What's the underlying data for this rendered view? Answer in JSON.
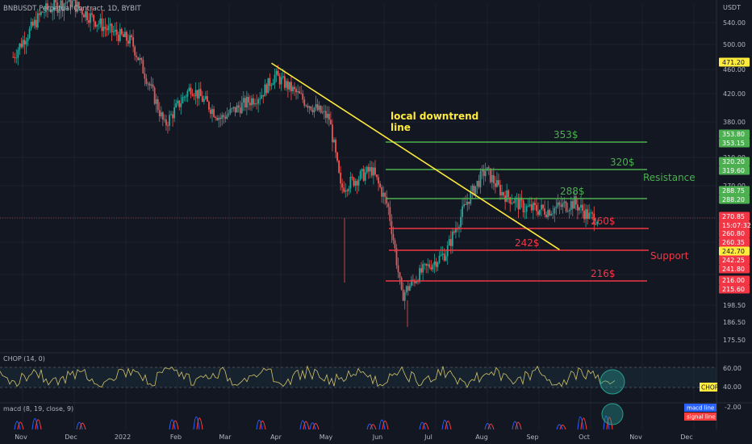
{
  "header": {
    "symbol_title": "BNBUSDT Perpetual Contract, 1D, BYBIT",
    "currency": "USDT"
  },
  "colors": {
    "background": "#131722",
    "grid": "#1e222d",
    "up_candle": "#26a69a",
    "down_candle": "#ef5350",
    "resistance": "#4caf50",
    "support": "#f23645",
    "downtrend": "#ffeb3b",
    "chop_line": "#d4c46a",
    "macd_line": "#2962ff",
    "signal_line": "#ff3d3d",
    "axis_text": "#b2b5be"
  },
  "price_axis": {
    "ticks": [
      "540.00",
      "500.00",
      "460.00",
      "420.00",
      "380.00",
      "310.00",
      "270.00",
      "198.50",
      "186.50",
      "175.50"
    ],
    "badges": [
      {
        "text": "471.20",
        "kind": "yellow"
      },
      {
        "text": "353.80",
        "kind": "green"
      },
      {
        "text": "353.15",
        "kind": "green"
      },
      {
        "text": "320.20",
        "kind": "green"
      },
      {
        "text": "319.60",
        "kind": "green"
      },
      {
        "text": "288.75",
        "kind": "green"
      },
      {
        "text": "288.20",
        "kind": "green"
      },
      {
        "text": "270.85",
        "kind": "red"
      },
      {
        "text": "15:07:32",
        "kind": "red"
      },
      {
        "text": "260.80",
        "kind": "red"
      },
      {
        "text": "260.35",
        "kind": "red"
      },
      {
        "text": "242.70",
        "kind": "yellow"
      },
      {
        "text": "242.25",
        "kind": "red"
      },
      {
        "text": "241.80",
        "kind": "red"
      },
      {
        "text": "216.00",
        "kind": "red"
      },
      {
        "text": "215.60",
        "kind": "red"
      }
    ]
  },
  "time_axis": [
    "Nov",
    "Dec",
    "2022",
    "Feb",
    "Mar",
    "Apr",
    "May",
    "Jun",
    "Jul",
    "Aug",
    "Sep",
    "Oct",
    "Nov",
    "Dec"
  ],
  "annotations": {
    "downtrend_label": [
      "local downtrend",
      "line"
    ],
    "resistance_label": "Resistance",
    "support_label": "Support"
  },
  "levels": [
    {
      "label": "353$",
      "price": 353.8,
      "type": "resistance"
    },
    {
      "label": "320$",
      "price": 320.2,
      "type": "resistance"
    },
    {
      "label": "288$",
      "price": 288.75,
      "type": "resistance"
    },
    {
      "label": "260$",
      "price": 260.8,
      "type": "support"
    },
    {
      "label": "242$",
      "price": 242.25,
      "type": "support"
    },
    {
      "label": "216$",
      "price": 216.0,
      "type": "support"
    }
  ],
  "chop_panel": {
    "title": "CHOP (14, 0)",
    "ticks": [
      "60.00",
      "40.00"
    ],
    "badge": "CHOP"
  },
  "macd_panel": {
    "title": "macd (8, 19, close, 9)",
    "ticks": [
      "-2.00"
    ],
    "legend": [
      "macd line",
      "signal line"
    ]
  },
  "chart_data": {
    "type": "candlestick",
    "title": "BNBUSDT Perpetual Contract, 1D, BYBIT",
    "x_range": [
      "2021-10-20",
      "2022-12-20"
    ],
    "y_unit": "USDT",
    "trend_points": [
      {
        "date": "2021-10-25",
        "price": 480
      },
      {
        "date": "2021-11-12",
        "price": 560
      },
      {
        "date": "2021-11-28",
        "price": 580
      },
      {
        "date": "2021-12-20",
        "price": 530
      },
      {
        "date": "2022-01-05",
        "price": 505
      },
      {
        "date": "2022-01-25",
        "price": 375
      },
      {
        "date": "2022-02-10",
        "price": 430
      },
      {
        "date": "2022-02-28",
        "price": 385
      },
      {
        "date": "2022-03-25",
        "price": 420
      },
      {
        "date": "2022-04-02",
        "price": 450
      },
      {
        "date": "2022-04-20",
        "price": 410
      },
      {
        "date": "2022-05-05",
        "price": 385
      },
      {
        "date": "2022-05-12",
        "price": 300
      },
      {
        "date": "2022-05-31",
        "price": 320
      },
      {
        "date": "2022-06-10",
        "price": 280
      },
      {
        "date": "2022-06-18",
        "price": 205
      },
      {
        "date": "2022-07-01",
        "price": 225
      },
      {
        "date": "2022-07-15",
        "price": 240
      },
      {
        "date": "2022-07-29",
        "price": 290
      },
      {
        "date": "2022-08-08",
        "price": 320
      },
      {
        "date": "2022-08-18",
        "price": 295
      },
      {
        "date": "2022-09-01",
        "price": 280
      },
      {
        "date": "2022-09-15",
        "price": 278
      },
      {
        "date": "2022-10-01",
        "price": 285
      },
      {
        "date": "2022-10-10",
        "price": 272
      },
      {
        "date": "2022-10-15",
        "price": 270.85
      }
    ],
    "downtrend_line": [
      {
        "date": "2022-03-31",
        "price": 470
      },
      {
        "date": "2022-09-22",
        "price": 242.7
      }
    ]
  }
}
